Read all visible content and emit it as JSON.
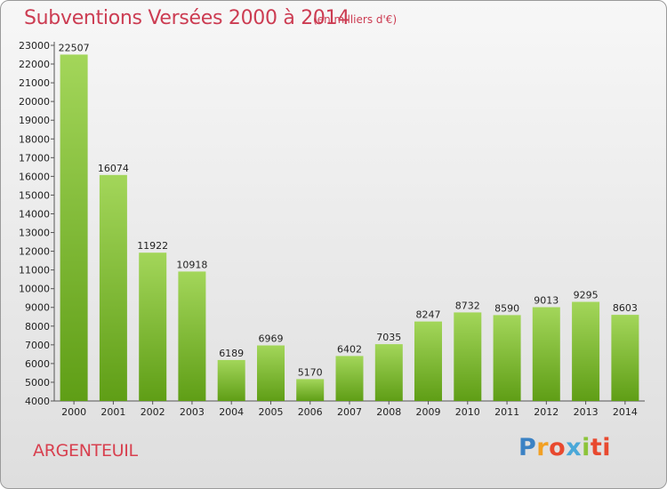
{
  "header": {
    "title": "Subventions Versées 2000 à 2014",
    "subtitle": "(en milliers d'€)"
  },
  "footer": {
    "city": "ARGENTEUIL",
    "logo_text": "Proxiti"
  },
  "colors": {
    "title": "#cc3c52",
    "bar_top": "#a3d65a",
    "bar_bottom": "#5f9e16",
    "axis": "#555555"
  },
  "chart_data": {
    "type": "bar",
    "title": "Subventions Versées 2000 à 2014",
    "subtitle": "(en milliers d'€)",
    "xlabel": "",
    "ylabel": "",
    "categories": [
      "2000",
      "2001",
      "2002",
      "2003",
      "2004",
      "2005",
      "2006",
      "2007",
      "2008",
      "2009",
      "2010",
      "2011",
      "2012",
      "2013",
      "2014"
    ],
    "values": [
      22507,
      16074,
      11922,
      10918,
      6189,
      6969,
      5170,
      6402,
      7035,
      8247,
      8732,
      8590,
      9013,
      9295,
      8603
    ],
    "ylim": [
      4000,
      23000
    ],
    "yticks": [
      4000,
      5000,
      6000,
      7000,
      8000,
      9000,
      10000,
      11000,
      12000,
      13000,
      14000,
      15000,
      16000,
      17000,
      18000,
      19000,
      20000,
      21000,
      22000,
      23000
    ],
    "grid": false,
    "legend": "none",
    "data_labels": true
  }
}
